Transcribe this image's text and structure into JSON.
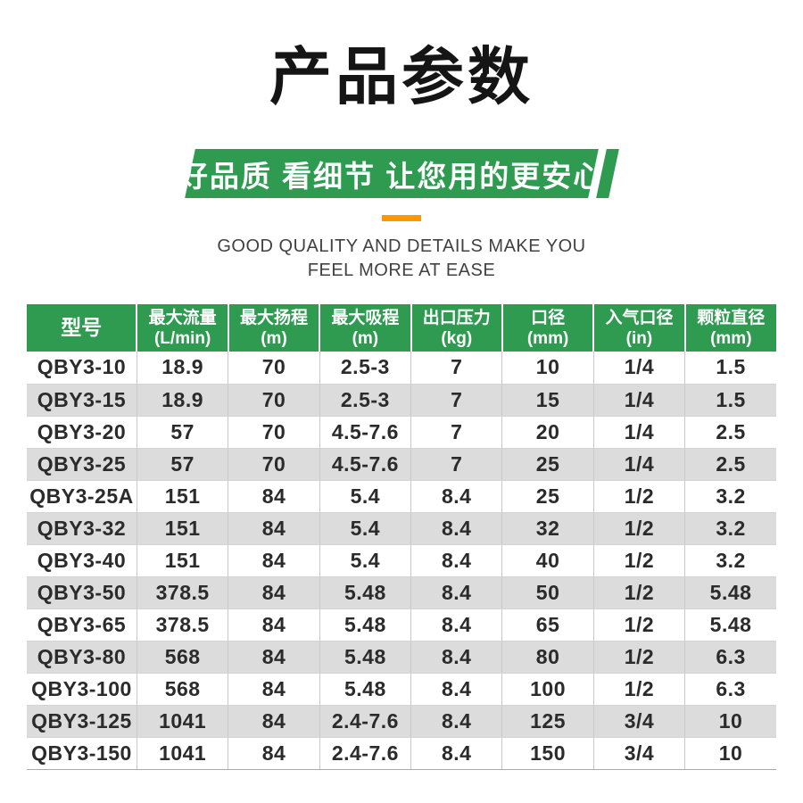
{
  "title": "产品参数",
  "banner": {
    "text": "好品质 看细节 让您用的更安心"
  },
  "subtitle": {
    "line1": "GOOD QUALITY AND DETAILS MAKE YOU",
    "line2": "FEEL MORE AT EASE"
  },
  "colors": {
    "green": "#2e9b51",
    "orange": "#ff9800",
    "row_alt_gray": "#dcdcdc",
    "text_ink": "#2b2b2b"
  },
  "table": {
    "columns": [
      {
        "name": "型号",
        "unit": ""
      },
      {
        "name": "最大流量",
        "unit": "(L/min)"
      },
      {
        "name": "最大扬程",
        "unit": "(m)"
      },
      {
        "name": "最大吸程",
        "unit": "(m)"
      },
      {
        "name": "出口压力",
        "unit": "(kg)"
      },
      {
        "name": "口径",
        "unit": "(mm)"
      },
      {
        "name": "入气口径",
        "unit": "(in)"
      },
      {
        "name": "颗粒直径",
        "unit": "(mm)"
      }
    ],
    "rows": [
      [
        "QBY3-10",
        "18.9",
        "70",
        "2.5-3",
        "7",
        "10",
        "1/4",
        "1.5"
      ],
      [
        "QBY3-15",
        "18.9",
        "70",
        "2.5-3",
        "7",
        "15",
        "1/4",
        "1.5"
      ],
      [
        "QBY3-20",
        "57",
        "70",
        "4.5-7.6",
        "7",
        "20",
        "1/4",
        "2.5"
      ],
      [
        "QBY3-25",
        "57",
        "70",
        "4.5-7.6",
        "7",
        "25",
        "1/4",
        "2.5"
      ],
      [
        "QBY3-25A",
        "151",
        "84",
        "5.4",
        "8.4",
        "25",
        "1/2",
        "3.2"
      ],
      [
        "QBY3-32",
        "151",
        "84",
        "5.4",
        "8.4",
        "32",
        "1/2",
        "3.2"
      ],
      [
        "QBY3-40",
        "151",
        "84",
        "5.4",
        "8.4",
        "40",
        "1/2",
        "3.2"
      ],
      [
        "QBY3-50",
        "378.5",
        "84",
        "5.48",
        "8.4",
        "50",
        "1/2",
        "5.48"
      ],
      [
        "QBY3-65",
        "378.5",
        "84",
        "5.48",
        "8.4",
        "65",
        "1/2",
        "5.48"
      ],
      [
        "QBY3-80",
        "568",
        "84",
        "5.48",
        "8.4",
        "80",
        "1/2",
        "6.3"
      ],
      [
        "QBY3-100",
        "568",
        "84",
        "5.48",
        "8.4",
        "100",
        "1/2",
        "6.3"
      ],
      [
        "QBY3-125",
        "1041",
        "84",
        "2.4-7.6",
        "8.4",
        "125",
        "3/4",
        "10"
      ],
      [
        "QBY3-150",
        "1041",
        "84",
        "2.4-7.6",
        "8.4",
        "150",
        "3/4",
        "10"
      ]
    ]
  }
}
